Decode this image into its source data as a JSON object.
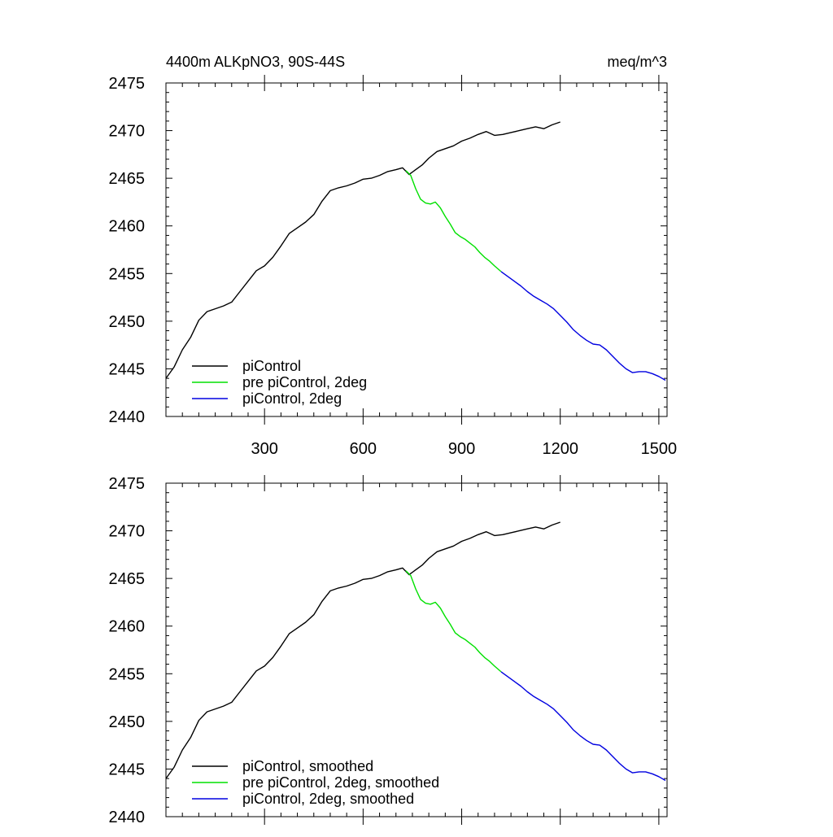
{
  "chart_data": [
    {
      "type": "line",
      "title": "4400m ALKpNO3, 90S-44S",
      "units": "meq/m^3",
      "xlim": [
        0,
        1525
      ],
      "ylim": [
        2440,
        2475
      ],
      "x_ticks": [
        300,
        600,
        900,
        1200,
        1500
      ],
      "x_tick_labels": [
        "300",
        "600",
        "900",
        "1200",
        "1500"
      ],
      "y_ticks": [
        2440,
        2445,
        2450,
        2455,
        2460,
        2465,
        2470,
        2475
      ],
      "y_tick_labels": [
        "2440",
        "2445",
        "2450",
        "2455",
        "2460",
        "2465",
        "2470",
        "2475"
      ],
      "legend_position": "bottom-left",
      "series": [
        {
          "name": "piControl",
          "color": "#000000",
          "points": [
            [
              0,
              2444.0
            ],
            [
              25,
              2445.2
            ],
            [
              50,
              2447.0
            ],
            [
              75,
              2448.3
            ],
            [
              100,
              2450.1
            ],
            [
              125,
              2451.0
            ],
            [
              150,
              2451.3
            ],
            [
              175,
              2451.6
            ],
            [
              200,
              2452.0
            ],
            [
              225,
              2453.1
            ],
            [
              250,
              2454.2
            ],
            [
              275,
              2455.3
            ],
            [
              300,
              2455.8
            ],
            [
              325,
              2456.7
            ],
            [
              350,
              2457.9
            ],
            [
              375,
              2459.2
            ],
            [
              400,
              2459.8
            ],
            [
              425,
              2460.4
            ],
            [
              450,
              2461.2
            ],
            [
              475,
              2462.6
            ],
            [
              500,
              2463.7
            ],
            [
              525,
              2464.0
            ],
            [
              550,
              2464.2
            ],
            [
              575,
              2464.5
            ],
            [
              600,
              2464.9
            ],
            [
              625,
              2465.0
            ],
            [
              650,
              2465.3
            ],
            [
              675,
              2465.7
            ],
            [
              700,
              2465.9
            ],
            [
              720,
              2466.1
            ],
            [
              740,
              2465.4
            ],
            [
              760,
              2465.9
            ],
            [
              780,
              2466.4
            ],
            [
              800,
              2467.1
            ],
            [
              825,
              2467.8
            ],
            [
              850,
              2468.1
            ],
            [
              875,
              2468.4
            ],
            [
              900,
              2468.9
            ],
            [
              925,
              2469.2
            ],
            [
              950,
              2469.6
            ],
            [
              975,
              2469.9
            ],
            [
              1000,
              2469.5
            ],
            [
              1025,
              2469.6
            ],
            [
              1050,
              2469.8
            ],
            [
              1075,
              2470.0
            ],
            [
              1100,
              2470.2
            ],
            [
              1125,
              2470.4
            ],
            [
              1150,
              2470.2
            ],
            [
              1175,
              2470.6
            ],
            [
              1200,
              2470.9
            ]
          ]
        },
        {
          "name": "pre piControl, 2deg",
          "color": "#00e000",
          "points": [
            [
              730,
              2465.8
            ],
            [
              745,
              2465.3
            ],
            [
              760,
              2463.9
            ],
            [
              775,
              2462.8
            ],
            [
              790,
              2462.4
            ],
            [
              805,
              2462.3
            ],
            [
              820,
              2462.5
            ],
            [
              835,
              2461.9
            ],
            [
              850,
              2461.0
            ],
            [
              865,
              2460.2
            ],
            [
              880,
              2459.3
            ],
            [
              895,
              2458.9
            ],
            [
              910,
              2458.6
            ],
            [
              925,
              2458.2
            ],
            [
              940,
              2457.8
            ],
            [
              955,
              2457.2
            ],
            [
              970,
              2456.7
            ],
            [
              985,
              2456.3
            ],
            [
              1000,
              2455.8
            ],
            [
              1020,
              2455.2
            ]
          ]
        },
        {
          "name": "piControl, 2deg",
          "color": "#0000e0",
          "points": [
            [
              1020,
              2455.2
            ],
            [
              1040,
              2454.7
            ],
            [
              1060,
              2454.2
            ],
            [
              1080,
              2453.7
            ],
            [
              1100,
              2453.1
            ],
            [
              1120,
              2452.6
            ],
            [
              1140,
              2452.2
            ],
            [
              1160,
              2451.8
            ],
            [
              1180,
              2451.3
            ],
            [
              1200,
              2450.6
            ],
            [
              1220,
              2449.9
            ],
            [
              1240,
              2449.1
            ],
            [
              1260,
              2448.5
            ],
            [
              1280,
              2448.0
            ],
            [
              1300,
              2447.6
            ],
            [
              1320,
              2447.5
            ],
            [
              1340,
              2447.0
            ],
            [
              1360,
              2446.3
            ],
            [
              1380,
              2445.6
            ],
            [
              1400,
              2445.0
            ],
            [
              1420,
              2444.6
            ],
            [
              1440,
              2444.7
            ],
            [
              1460,
              2444.7
            ],
            [
              1480,
              2444.5
            ],
            [
              1500,
              2444.2
            ],
            [
              1520,
              2443.8
            ]
          ]
        }
      ]
    },
    {
      "type": "line",
      "title": "",
      "units": "",
      "xlim": [
        0,
        1525
      ],
      "ylim": [
        2440,
        2475
      ],
      "x_ticks": [
        300,
        600,
        900,
        1200,
        1500
      ],
      "x_tick_labels": [],
      "y_ticks": [
        2440,
        2445,
        2450,
        2455,
        2460,
        2465,
        2470,
        2475
      ],
      "y_tick_labels": [
        "2440",
        "2445",
        "2450",
        "2455",
        "2460",
        "2465",
        "2470",
        "2475"
      ],
      "legend_position": "bottom-left",
      "series": [
        {
          "name": "piControl, smoothed",
          "color": "#000000",
          "points": [
            [
              0,
              2444.0
            ],
            [
              25,
              2445.2
            ],
            [
              50,
              2447.0
            ],
            [
              75,
              2448.3
            ],
            [
              100,
              2450.1
            ],
            [
              125,
              2451.0
            ],
            [
              150,
              2451.3
            ],
            [
              175,
              2451.6
            ],
            [
              200,
              2452.0
            ],
            [
              225,
              2453.1
            ],
            [
              250,
              2454.2
            ],
            [
              275,
              2455.3
            ],
            [
              300,
              2455.8
            ],
            [
              325,
              2456.7
            ],
            [
              350,
              2457.9
            ],
            [
              375,
              2459.2
            ],
            [
              400,
              2459.8
            ],
            [
              425,
              2460.4
            ],
            [
              450,
              2461.2
            ],
            [
              475,
              2462.6
            ],
            [
              500,
              2463.7
            ],
            [
              525,
              2464.0
            ],
            [
              550,
              2464.2
            ],
            [
              575,
              2464.5
            ],
            [
              600,
              2464.9
            ],
            [
              625,
              2465.0
            ],
            [
              650,
              2465.3
            ],
            [
              675,
              2465.7
            ],
            [
              700,
              2465.9
            ],
            [
              720,
              2466.1
            ],
            [
              740,
              2465.4
            ],
            [
              760,
              2465.9
            ],
            [
              780,
              2466.4
            ],
            [
              800,
              2467.1
            ],
            [
              825,
              2467.8
            ],
            [
              850,
              2468.1
            ],
            [
              875,
              2468.4
            ],
            [
              900,
              2468.9
            ],
            [
              925,
              2469.2
            ],
            [
              950,
              2469.6
            ],
            [
              975,
              2469.9
            ],
            [
              1000,
              2469.5
            ],
            [
              1025,
              2469.6
            ],
            [
              1050,
              2469.8
            ],
            [
              1075,
              2470.0
            ],
            [
              1100,
              2470.2
            ],
            [
              1125,
              2470.4
            ],
            [
              1150,
              2470.2
            ],
            [
              1175,
              2470.6
            ],
            [
              1200,
              2470.9
            ]
          ]
        },
        {
          "name": "pre piControl, 2deg, smoothed",
          "color": "#00e000",
          "points": [
            [
              730,
              2465.8
            ],
            [
              745,
              2465.3
            ],
            [
              760,
              2463.9
            ],
            [
              775,
              2462.8
            ],
            [
              790,
              2462.4
            ],
            [
              805,
              2462.3
            ],
            [
              820,
              2462.5
            ],
            [
              835,
              2461.9
            ],
            [
              850,
              2461.0
            ],
            [
              865,
              2460.2
            ],
            [
              880,
              2459.3
            ],
            [
              895,
              2458.9
            ],
            [
              910,
              2458.6
            ],
            [
              925,
              2458.2
            ],
            [
              940,
              2457.8
            ],
            [
              955,
              2457.2
            ],
            [
              970,
              2456.7
            ],
            [
              985,
              2456.3
            ],
            [
              1000,
              2455.8
            ],
            [
              1020,
              2455.2
            ]
          ]
        },
        {
          "name": "piControl, 2deg, smoothed",
          "color": "#0000e0",
          "points": [
            [
              1020,
              2455.2
            ],
            [
              1040,
              2454.7
            ],
            [
              1060,
              2454.2
            ],
            [
              1080,
              2453.7
            ],
            [
              1100,
              2453.1
            ],
            [
              1120,
              2452.6
            ],
            [
              1140,
              2452.2
            ],
            [
              1160,
              2451.8
            ],
            [
              1180,
              2451.3
            ],
            [
              1200,
              2450.6
            ],
            [
              1220,
              2449.9
            ],
            [
              1240,
              2449.1
            ],
            [
              1260,
              2448.5
            ],
            [
              1280,
              2448.0
            ],
            [
              1300,
              2447.6
            ],
            [
              1320,
              2447.5
            ],
            [
              1340,
              2447.0
            ],
            [
              1360,
              2446.3
            ],
            [
              1380,
              2445.6
            ],
            [
              1400,
              2445.0
            ],
            [
              1420,
              2444.6
            ],
            [
              1440,
              2444.7
            ],
            [
              1460,
              2444.7
            ],
            [
              1480,
              2444.5
            ],
            [
              1500,
              2444.2
            ],
            [
              1520,
              2443.8
            ]
          ]
        }
      ]
    }
  ]
}
